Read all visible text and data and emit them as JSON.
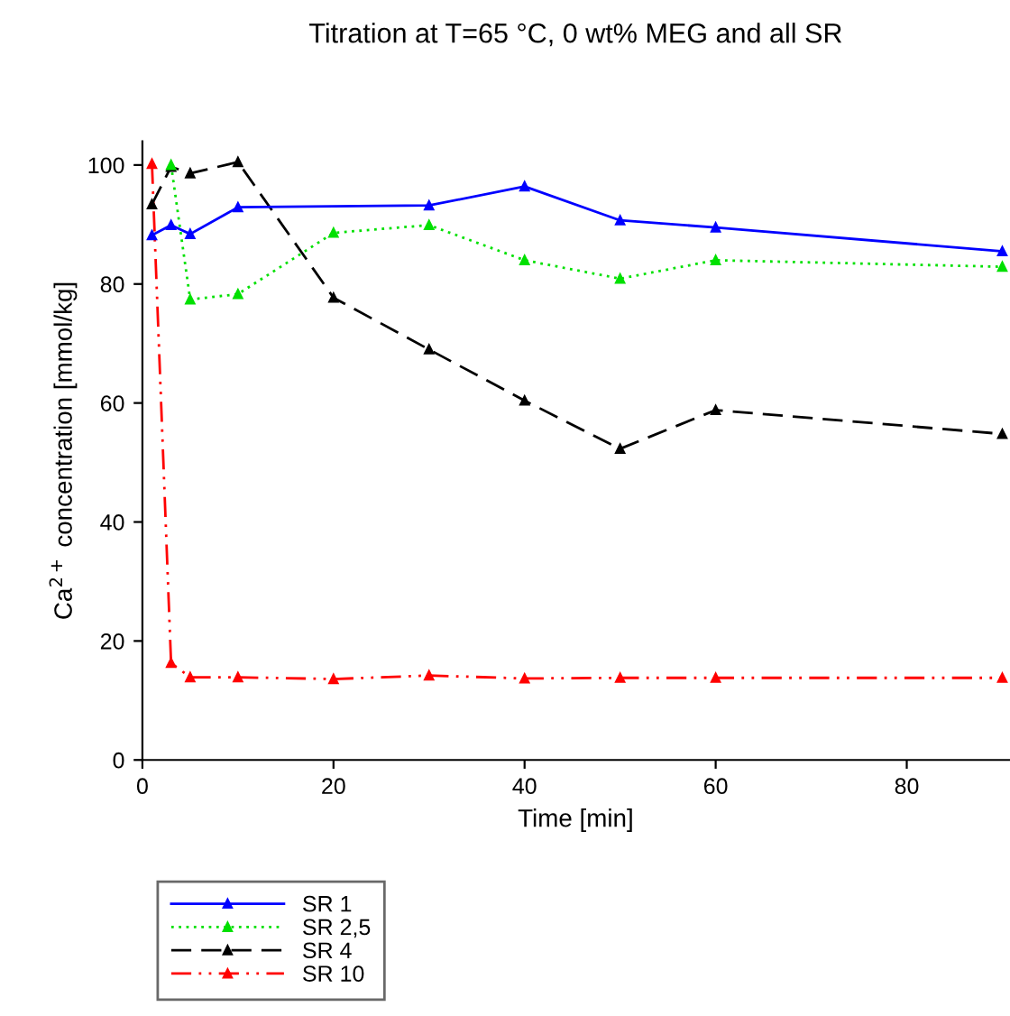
{
  "chart_data": {
    "type": "line",
    "title": "Titration at T=65 °C, 0 wt% MEG and all SR",
    "xlabel": "Time [min]",
    "ylabel": "Ca$^{2+}$ concentration [mmol/kg]",
    "xlim": [
      0,
      90.7
    ],
    "ylim": [
      0,
      104
    ],
    "xticks": [
      0,
      20,
      40,
      60,
      80
    ],
    "yticks": [
      0,
      20,
      40,
      60,
      80,
      100
    ],
    "grid": false,
    "legend": "bottom left",
    "marker": "triangle",
    "series": [
      {
        "name": "SR 1",
        "color": "#0000ff",
        "line_style": "solid",
        "x": [
          1,
          3,
          5,
          10,
          30,
          40,
          50,
          60,
          90
        ],
        "values": [
          88.2,
          89.9,
          88.4,
          92.9,
          93.2,
          96.4,
          90.7,
          89.5,
          85.5
        ]
      },
      {
        "name": "SR 2,5",
        "color": "#00e000",
        "line_style": "dotted",
        "x": [
          3,
          5,
          10,
          20,
          30,
          40,
          50,
          60,
          90
        ],
        "values": [
          100,
          77.4,
          78.3,
          88.6,
          89.9,
          84.0,
          80.9,
          84.0,
          82.9
        ]
      },
      {
        "name": "SR 4",
        "color": "#000000",
        "line_style": "dashed",
        "x": [
          1,
          3,
          5,
          10,
          20,
          30,
          40,
          50,
          60,
          90
        ],
        "values": [
          93.4,
          99.7,
          98.6,
          100.5,
          77.7,
          69.0,
          60.4,
          52.3,
          58.8,
          54.8
        ]
      },
      {
        "name": "SR 10",
        "color": "#ff0000",
        "line_style": "dashdotdot",
        "x": [
          1,
          3,
          5,
          10,
          20,
          30,
          40,
          50,
          60,
          90
        ],
        "values": [
          100.2,
          16.3,
          13.9,
          13.9,
          13.6,
          14.2,
          13.7,
          13.8,
          13.8,
          13.8
        ]
      }
    ]
  }
}
